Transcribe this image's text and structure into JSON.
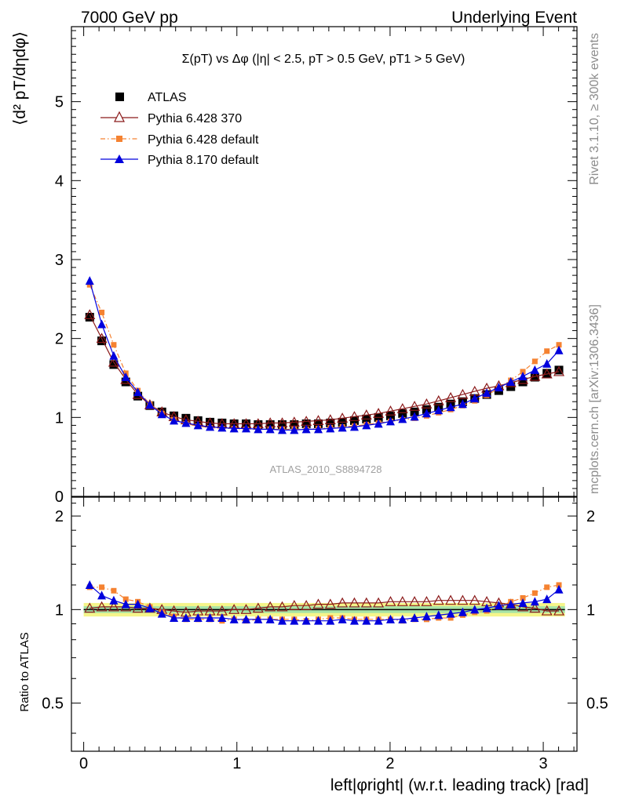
{
  "header": {
    "left": "7000 GeV pp",
    "right": "Underlying Event"
  },
  "plot_title": "Σ(pT) vs Δφ (|η| < 2.5, pT > 0.5 GeV, pT1 > 5 GeV)",
  "side_labels": {
    "rivet": "Rivet 3.1.10, ≥ 300k events",
    "mcplots": "mcplots.cern.ch [arXiv:1306.3436]"
  },
  "watermark": "ATLAS_2010_S8894728",
  "legend": [
    "ATLAS",
    "Pythia 6.428 370",
    "Pythia 6.428 default",
    "Pythia 8.170 default"
  ],
  "colors": {
    "atlas": "#000000",
    "p6_370": "#8b1a1a",
    "p6_default": "#f58231",
    "p8_default": "#0000dd",
    "band_inner": "#a6e3a6",
    "band_outer": "#f5f58a"
  },
  "chart_data": [
    {
      "type": "scatter",
      "panel": "main",
      "ylabel": "⟨d² pT/dηdφ⟩",
      "xlim": [
        -0.08,
        3.22
      ],
      "ylim": [
        0,
        5.95
      ],
      "yticks": [
        0,
        1,
        2,
        3,
        4,
        5
      ],
      "x": [
        0.0393,
        0.1178,
        0.1963,
        0.2749,
        0.3534,
        0.432,
        0.5105,
        0.589,
        0.6676,
        0.7461,
        0.8247,
        0.9032,
        0.9817,
        1.0603,
        1.1388,
        1.2174,
        1.2959,
        1.3744,
        1.453,
        1.5315,
        1.6101,
        1.6886,
        1.7671,
        1.8457,
        1.9242,
        2.0028,
        2.0813,
        2.1598,
        2.2384,
        2.3169,
        2.3955,
        2.474,
        2.5525,
        2.6311,
        2.7096,
        2.7882,
        2.8667,
        2.9452,
        3.0238,
        3.1023
      ],
      "series": [
        {
          "name": "ATLAS",
          "values": [
            2.27,
            1.97,
            1.67,
            1.45,
            1.27,
            1.15,
            1.07,
            1.02,
            0.99,
            0.96,
            0.94,
            0.93,
            0.92,
            0.92,
            0.91,
            0.91,
            0.91,
            0.91,
            0.92,
            0.92,
            0.93,
            0.94,
            0.96,
            0.98,
            1.0,
            1.02,
            1.05,
            1.07,
            1.1,
            1.13,
            1.17,
            1.2,
            1.24,
            1.29,
            1.34,
            1.39,
            1.45,
            1.51,
            1.56,
            1.6
          ]
        },
        {
          "name": "Pythia 6.428 370",
          "values": [
            2.3,
            2.0,
            1.7,
            1.48,
            1.29,
            1.16,
            1.07,
            1.01,
            0.97,
            0.95,
            0.93,
            0.92,
            0.92,
            0.92,
            0.92,
            0.93,
            0.93,
            0.94,
            0.95,
            0.96,
            0.97,
            0.99,
            1.01,
            1.03,
            1.05,
            1.08,
            1.11,
            1.14,
            1.17,
            1.21,
            1.25,
            1.29,
            1.33,
            1.37,
            1.4,
            1.44,
            1.48,
            1.52,
            1.55,
            1.58
          ]
        },
        {
          "name": "Pythia 6.428 default",
          "values": [
            2.68,
            2.33,
            1.92,
            1.56,
            1.34,
            1.17,
            1.05,
            0.97,
            0.92,
            0.89,
            0.87,
            0.86,
            0.86,
            0.85,
            0.85,
            0.85,
            0.85,
            0.85,
            0.85,
            0.86,
            0.87,
            0.88,
            0.89,
            0.91,
            0.93,
            0.95,
            0.97,
            0.99,
            1.02,
            1.06,
            1.1,
            1.15,
            1.21,
            1.28,
            1.37,
            1.47,
            1.58,
            1.71,
            1.84,
            1.92
          ]
        },
        {
          "name": "Pythia 8.170 default",
          "values": [
            2.73,
            2.18,
            1.78,
            1.51,
            1.32,
            1.16,
            1.04,
            0.96,
            0.93,
            0.9,
            0.88,
            0.87,
            0.86,
            0.86,
            0.85,
            0.85,
            0.84,
            0.84,
            0.85,
            0.85,
            0.86,
            0.87,
            0.88,
            0.9,
            0.92,
            0.95,
            0.98,
            1.01,
            1.05,
            1.09,
            1.13,
            1.17,
            1.24,
            1.31,
            1.38,
            1.45,
            1.52,
            1.6,
            1.68,
            1.85
          ]
        }
      ]
    },
    {
      "type": "scatter",
      "panel": "ratio",
      "xlabel": "left|φright| (w.r.t. leading track) [rad]",
      "ylabel": "Ratio to ATLAS",
      "xlim": [
        -0.08,
        3.22
      ],
      "ylim": [
        0.35,
        2.3
      ],
      "yticks": [
        0.5,
        1,
        2
      ],
      "xticks": [
        0,
        1,
        2,
        3
      ],
      "band_inner": [
        0.975,
        1.025
      ],
      "band_outer": [
        0.95,
        1.05
      ],
      "x": [
        0.0393,
        0.1178,
        0.1963,
        0.2749,
        0.3534,
        0.432,
        0.5105,
        0.589,
        0.6676,
        0.7461,
        0.8247,
        0.9032,
        0.9817,
        1.0603,
        1.1388,
        1.2174,
        1.2959,
        1.3744,
        1.453,
        1.5315,
        1.6101,
        1.6886,
        1.7671,
        1.8457,
        1.9242,
        2.0028,
        2.0813,
        2.1598,
        2.2384,
        2.3169,
        2.3955,
        2.474,
        2.5525,
        2.6311,
        2.7096,
        2.7882,
        2.8667,
        2.9452,
        3.0238,
        3.1023
      ],
      "series": [
        {
          "name": "Pythia 6.428 370",
          "values": [
            1.01,
            1.02,
            1.02,
            1.02,
            1.01,
            1.01,
            1.0,
            0.99,
            0.98,
            0.99,
            0.99,
            0.99,
            1.0,
            1.0,
            1.01,
            1.02,
            1.02,
            1.03,
            1.03,
            1.04,
            1.04,
            1.05,
            1.05,
            1.05,
            1.05,
            1.06,
            1.06,
            1.06,
            1.06,
            1.07,
            1.07,
            1.07,
            1.07,
            1.06,
            1.05,
            1.04,
            1.02,
            1.01,
            0.99,
            0.99
          ]
        },
        {
          "name": "Pythia 6.428 default",
          "values": [
            1.18,
            1.18,
            1.15,
            1.08,
            1.06,
            1.02,
            0.98,
            0.95,
            0.93,
            0.93,
            0.93,
            0.92,
            0.93,
            0.92,
            0.93,
            0.93,
            0.93,
            0.93,
            0.92,
            0.93,
            0.94,
            0.94,
            0.93,
            0.93,
            0.93,
            0.93,
            0.92,
            0.93,
            0.93,
            0.94,
            0.94,
            0.96,
            0.98,
            0.99,
            1.02,
            1.06,
            1.09,
            1.13,
            1.18,
            1.2
          ]
        },
        {
          "name": "Pythia 8.170 default",
          "values": [
            1.2,
            1.11,
            1.07,
            1.04,
            1.04,
            1.01,
            0.97,
            0.94,
            0.94,
            0.94,
            0.94,
            0.94,
            0.93,
            0.93,
            0.93,
            0.93,
            0.92,
            0.92,
            0.92,
            0.92,
            0.92,
            0.93,
            0.92,
            0.92,
            0.92,
            0.93,
            0.93,
            0.94,
            0.95,
            0.96,
            0.97,
            0.98,
            1.0,
            1.01,
            1.03,
            1.04,
            1.05,
            1.06,
            1.08,
            1.16
          ]
        }
      ]
    }
  ]
}
